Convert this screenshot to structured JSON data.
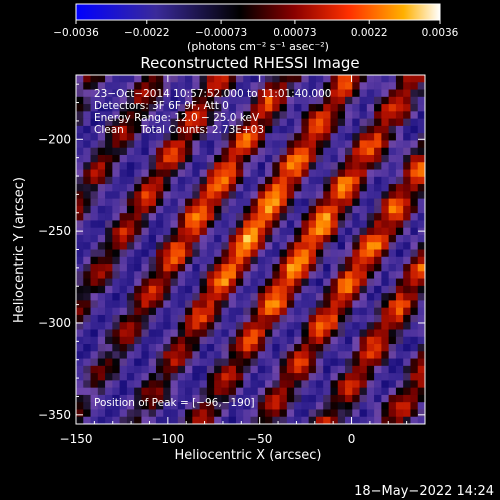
{
  "chart_data": {
    "type": "heatmap",
    "title": "Reconstructed RHESSI Image",
    "xlabel": "Heliocentric X (arcsec)",
    "ylabel": "Heliocentric Y (arcsec)",
    "xlim": [
      -150,
      40
    ],
    "ylim": [
      -355,
      -165
    ],
    "x_ticks": [
      -150,
      -100,
      -50,
      0
    ],
    "x_tick_labels": [
      "−150",
      "−100",
      "−50",
      "0"
    ],
    "y_ticks": [
      -350,
      -300,
      -250,
      -200
    ],
    "y_tick_labels": [
      "−350",
      "−300",
      "−250",
      "−200"
    ],
    "colorbar": {
      "min": -0.0036,
      "max": 0.0036,
      "ticks": [
        -0.0036,
        -0.0022,
        -0.00073,
        0.00073,
        0.0022,
        0.0036
      ],
      "tick_labels": [
        "−0.0036",
        "−0.0022",
        "−0.00073",
        "0.00073",
        "0.0022",
        "0.0036"
      ],
      "unit_label": "(photons cm⁻² s⁻¹ asec⁻²)",
      "colors": [
        "#0000ff",
        "#3a2a9a",
        "#000000",
        "#8a0000",
        "#ff3000",
        "#ffb000",
        "#ffffff"
      ]
    },
    "annotations": {
      "time_range": "23−Oct−2014 10:57:52.000 to 11:01:40.000",
      "detectors": "Detectors: 3F 6F 9F, Att 0",
      "energy_range": "Energy Range: 12.0 − 25.0 keV",
      "method_counts": "Clean     Total Counts: 2.73E+03",
      "peak": "Position of Peak = [−96,−190]"
    },
    "peak_position": [
      -96,
      -190
    ],
    "footer_timestamp": "18−May−2022 14:24"
  }
}
